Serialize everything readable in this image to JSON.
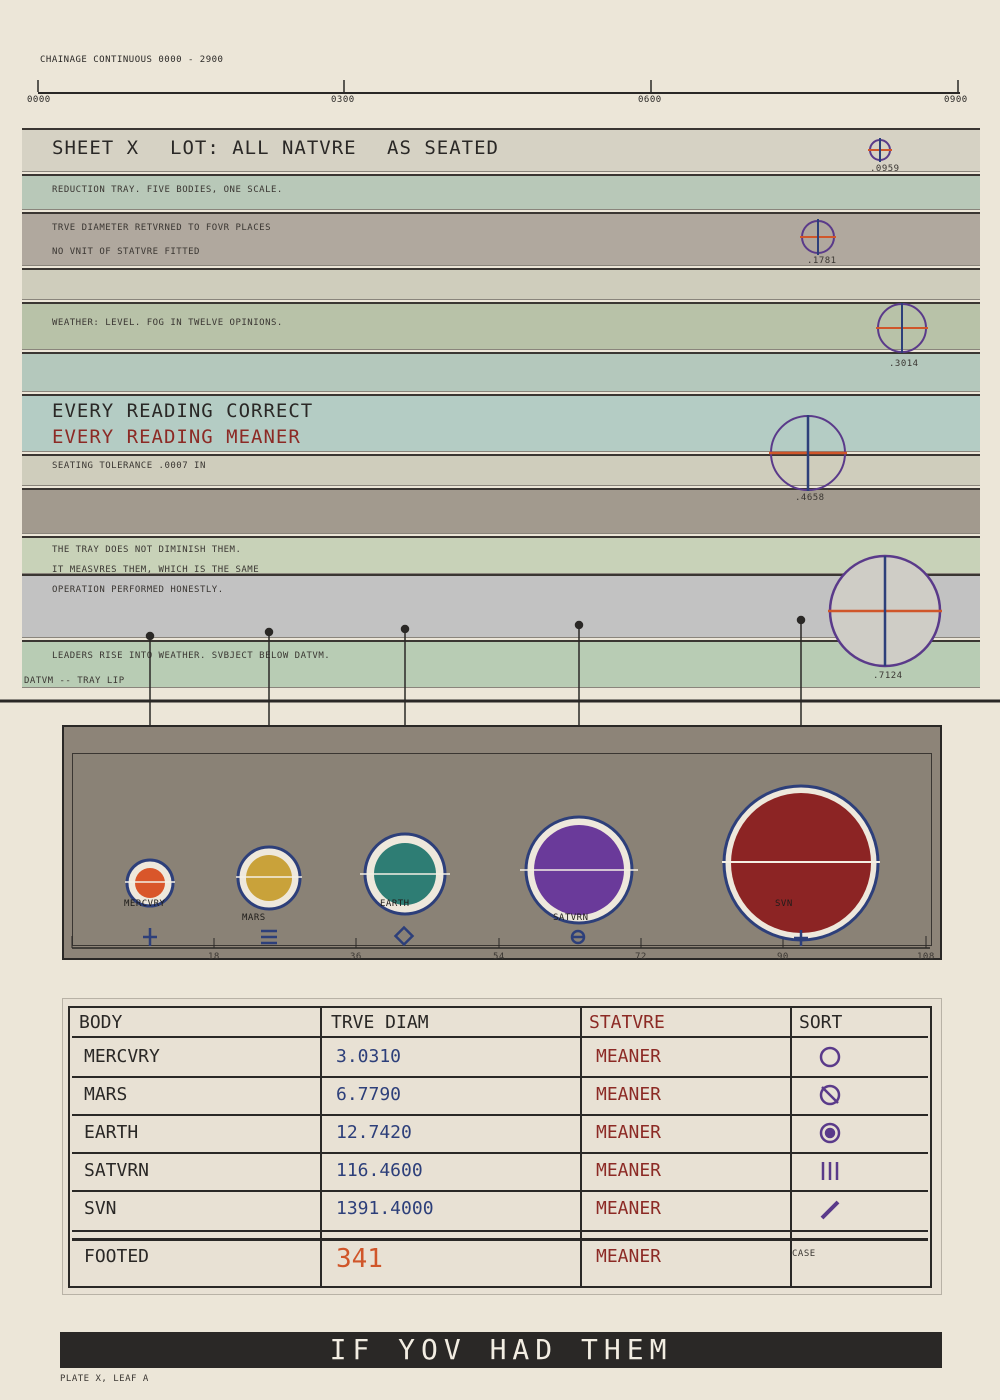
{
  "chainage": {
    "label": "CHAINAGE  CONTINUOUS  0000 - 2900",
    "ticks": [
      "0000",
      "0300",
      "0600",
      "0900"
    ]
  },
  "header": {
    "sheet": "SHEET X",
    "lot": "LOT: ALL NATVRE",
    "seated": "AS SEATED"
  },
  "notes": {
    "reduction": "REDUCTION TRAY. FIVE BODIES, ONE SCALE.",
    "true_diameter": "TRVE DIAMETER RETVRNED TO FOVR PLACES",
    "no_unit": "NO VNIT OF STATVRE FITTED",
    "weather": "WEATHER: LEVEL. FOG IN TWELVE OPINIONS.",
    "every_correct": "EVERY READING CORRECT",
    "every_meaner": "EVERY READING MEANER",
    "tolerance": "SEATING TOLERANCE .0007 IN",
    "para1": "THE TRAY DOES NOT DIMINISH THEM.",
    "para2": "IT MEASVRES THEM, WHICH IS THE SAME",
    "para3": "OPERATION PERFORMED HONESTLY.",
    "leaders": "LEADERS RISE INTO WEATHER. SVBJECT BELOW DATVM.",
    "datum": "DATVM  --  TRAY LIP"
  },
  "gauges": [
    ".0959",
    ".1781",
    ".3014",
    ".4658",
    ".7124"
  ],
  "tray": {
    "bodies": [
      {
        "name": "MERCVRY",
        "color": "#d9562a"
      },
      {
        "name": "MARS",
        "color": "#c9a23a"
      },
      {
        "name": "EARTH",
        "color": "#2e7d74"
      },
      {
        "name": "SATVRN",
        "color": "#6a3a9a"
      },
      {
        "name": "SVN",
        "color": "#8c2424"
      }
    ],
    "scale": [
      "18",
      "36",
      "54",
      "72",
      "90",
      "108"
    ]
  },
  "table": {
    "headers": [
      "BODY",
      "TRVE DIAM",
      "STATVRE",
      "SORT"
    ],
    "rows": [
      {
        "body": "MERCVRY",
        "diam": "3.0310",
        "stature": "MEANER"
      },
      {
        "body": "MARS",
        "diam": "6.7790",
        "stature": "MEANER"
      },
      {
        "body": "EARTH",
        "diam": "12.7420",
        "stature": "MEANER"
      },
      {
        "body": "SATVRN",
        "diam": "116.4600",
        "stature": "MEANER"
      },
      {
        "body": "SVN",
        "diam": "1391.4000",
        "stature": "MEANER"
      }
    ],
    "footed_label": "FOOTED",
    "footed_value": "341",
    "footed_stature": "MEANER",
    "case_label": "CASE"
  },
  "banner": "IF YOV HAD THEM",
  "plate": "PLATE X, LEAF A",
  "colors": {
    "ink": "#2a2826",
    "red": "#8c2a25",
    "blue": "#2d3f7a",
    "orange": "#d0562a",
    "purple": "#5a3a8a"
  }
}
